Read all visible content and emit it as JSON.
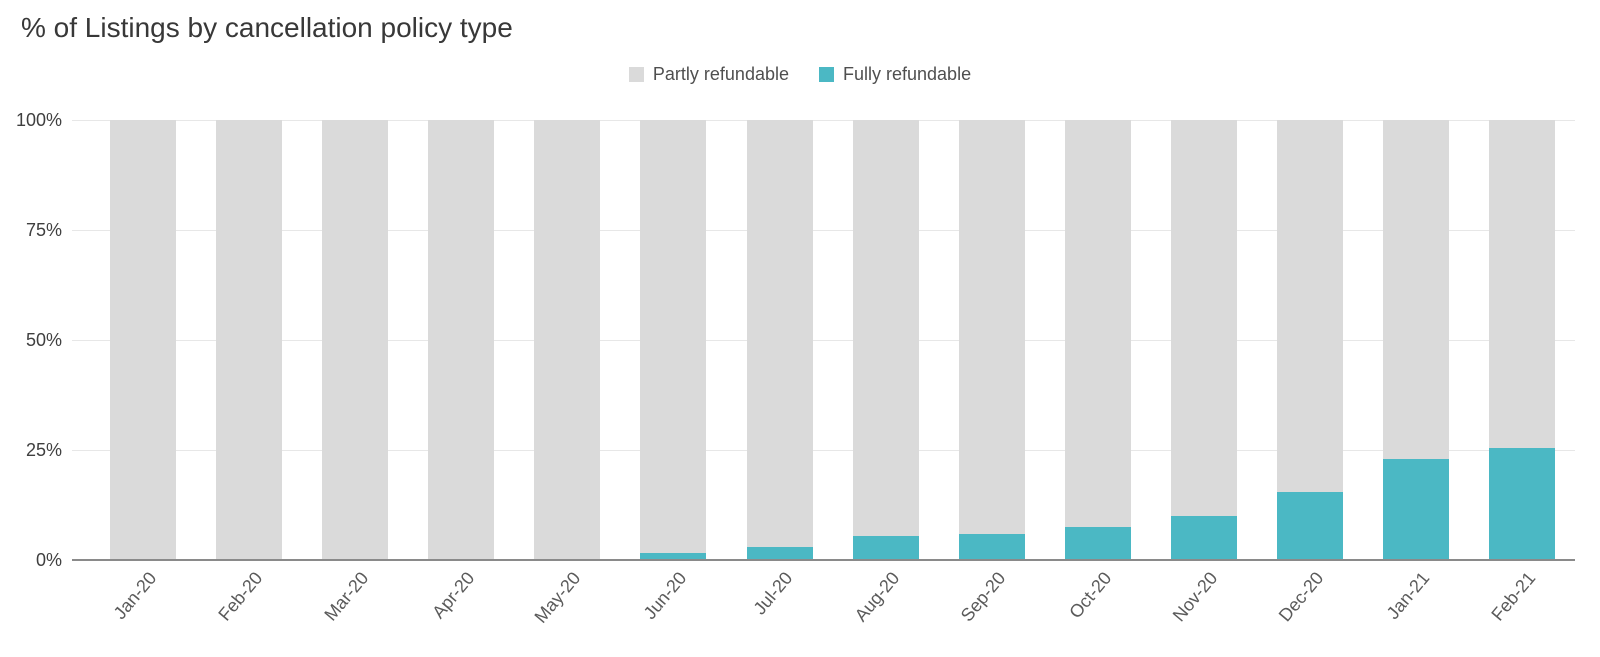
{
  "title": "% of Listings by cancellation policy type",
  "legend": {
    "items": [
      {
        "label": "Partly refundable",
        "color": "#dadada"
      },
      {
        "label": "Fully refundable",
        "color": "#4bb8c4"
      }
    ]
  },
  "chart_data": {
    "type": "bar",
    "subtype": "stacked-100-percent",
    "title": "% of Listings by cancellation policy type",
    "categories": [
      "Jan-20",
      "Feb-20",
      "Mar-20",
      "Apr-20",
      "May-20",
      "Jun-20",
      "Jul-20",
      "Aug-20",
      "Sep-20",
      "Oct-20",
      "Nov-20",
      "Dec-20",
      "Jan-21",
      "Feb-21"
    ],
    "series": [
      {
        "name": "Partly refundable",
        "color": "#dadada",
        "values": [
          100,
          100,
          100,
          100,
          100,
          98.5,
          97,
          94.5,
          94,
          92.5,
          90,
          84.5,
          77,
          74.5
        ]
      },
      {
        "name": "Fully refundable",
        "color": "#4bb8c4",
        "values": [
          0,
          0,
          0,
          0,
          0,
          1.5,
          3,
          5.5,
          6,
          7.5,
          10,
          15.5,
          23,
          25.5
        ]
      }
    ],
    "xlabel": "",
    "ylabel": "",
    "ylim": [
      0,
      100
    ],
    "yticks": [
      {
        "value": 0,
        "label": "0%"
      },
      {
        "value": 25,
        "label": "25%"
      },
      {
        "value": 50,
        "label": "50%"
      },
      {
        "value": 75,
        "label": "75%"
      },
      {
        "value": 100,
        "label": "100%"
      }
    ],
    "grid": true,
    "legend_position": "top-center",
    "colors": {
      "grid_line": "#e7e7e7",
      "axis_line": "#8a8a8a",
      "y_tick_text": "#3f3f3f",
      "x_tick_text": "#5a5a5a"
    }
  }
}
